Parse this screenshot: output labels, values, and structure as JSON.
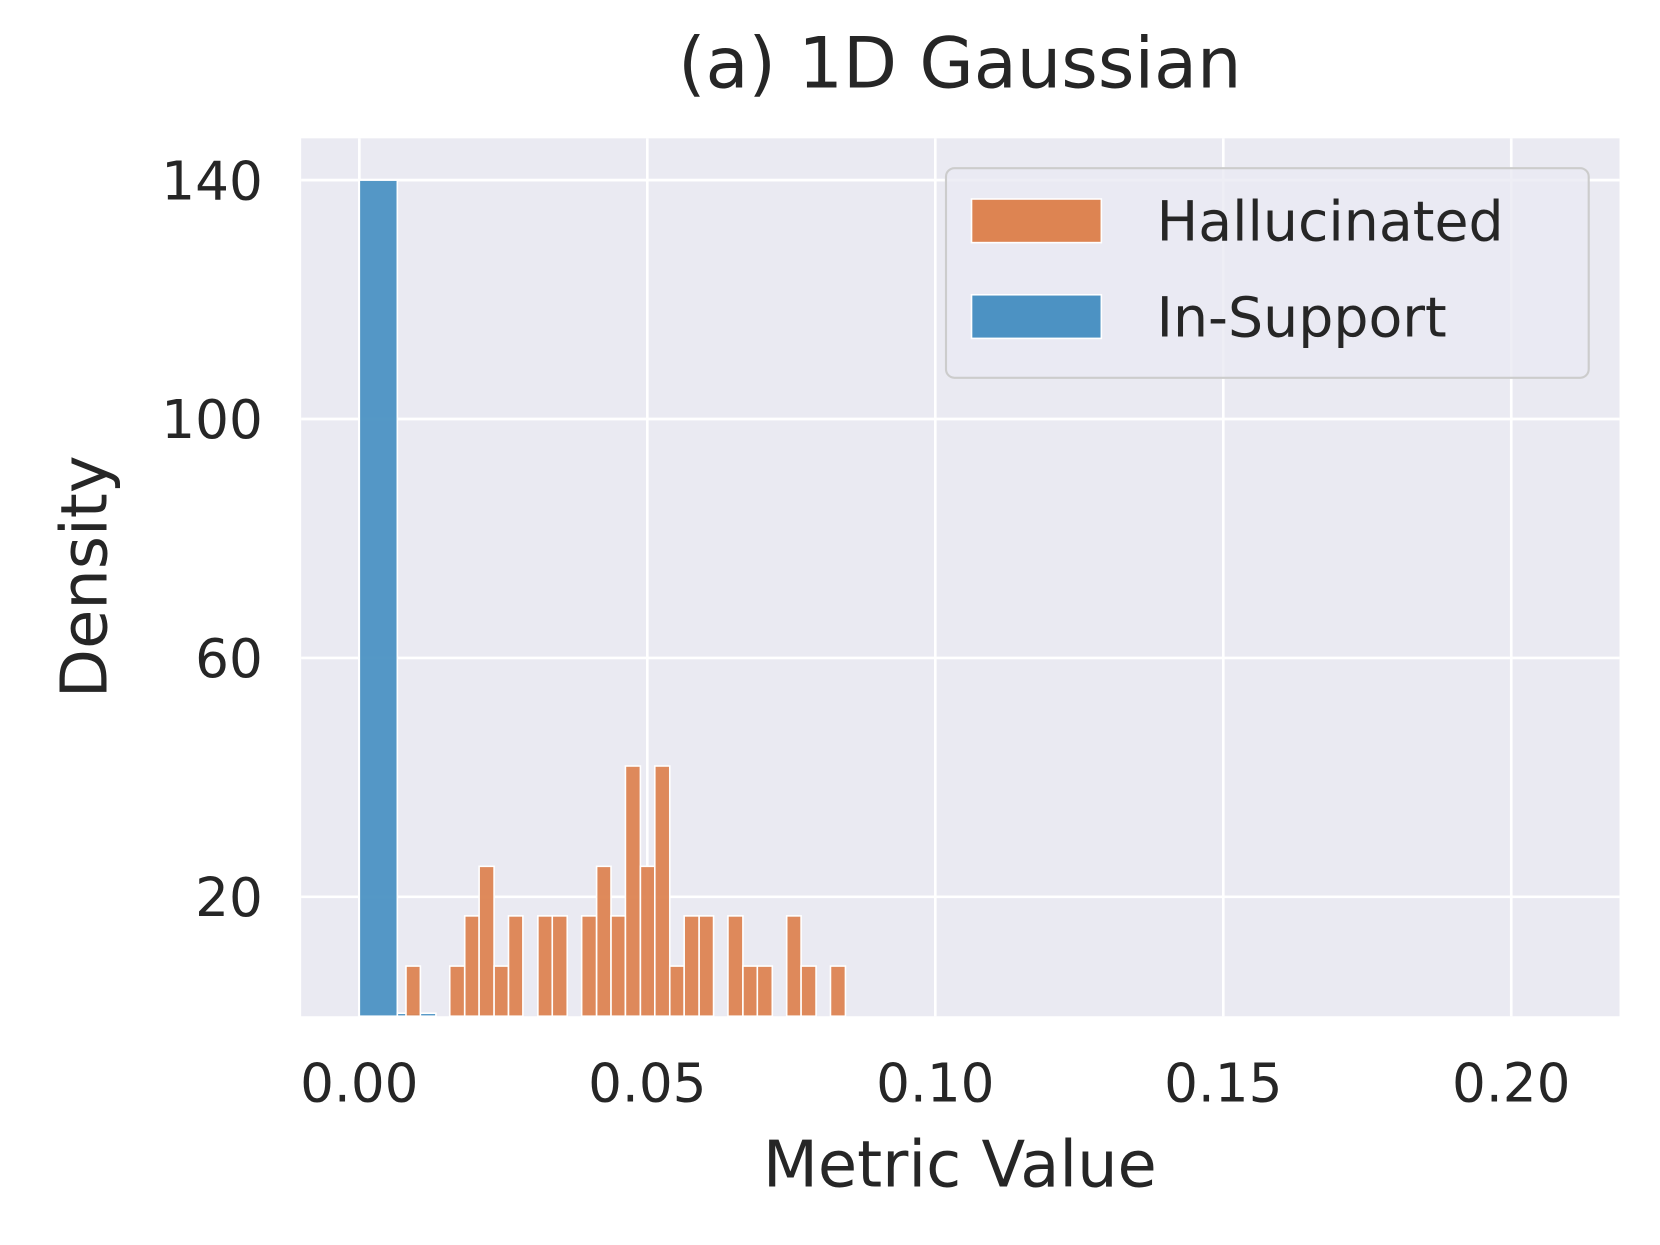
{
  "chart_data": {
    "type": "histogram",
    "title": "(a) 1D Gaussian",
    "xlabel": "Metric Value",
    "ylabel": "Density",
    "xlim": [
      -0.0101,
      0.2188
    ],
    "ylim": [
      0,
      147
    ],
    "xticks": [
      {
        "value": 0,
        "label": "0.00"
      },
      {
        "value": 0.05,
        "label": "0.05"
      },
      {
        "value": 0.1,
        "label": "0.10"
      },
      {
        "value": 0.15,
        "label": "0.15"
      },
      {
        "value": 0.2,
        "label": "0.20"
      }
    ],
    "yticks": [
      20,
      60,
      100,
      140
    ],
    "grid": true,
    "legend": "upper right",
    "series": [
      {
        "name": "Hallucinated",
        "color": "#dd8452",
        "bins": [
          0.0081,
          0.0106,
          0.0132,
          0.0157,
          0.0183,
          0.0208,
          0.0234,
          0.0259,
          0.0284,
          0.031,
          0.0335,
          0.0361,
          0.0386,
          0.0412,
          0.0437,
          0.0462,
          0.0488,
          0.0513,
          0.0539,
          0.0564,
          0.059,
          0.0615,
          0.064,
          0.0666,
          0.0691,
          0.0717,
          0.0742,
          0.0767,
          0.0793,
          0.0818,
          0.0844
        ],
        "values": [
          8.4,
          0,
          0,
          8.4,
          16.8,
          25.1,
          8.4,
          16.8,
          0,
          16.8,
          16.8,
          0,
          16.8,
          25.1,
          16.8,
          41.9,
          25.1,
          41.9,
          8.4,
          16.8,
          16.8,
          0,
          16.8,
          8.4,
          8.4,
          0,
          16.8,
          8.4,
          0,
          8.4
        ]
      },
      {
        "name": "In-Support",
        "color": "#4c92c3",
        "bins": [
          0,
          0.0066,
          0.0133
        ],
        "values": [
          140,
          0.5
        ]
      }
    ]
  }
}
